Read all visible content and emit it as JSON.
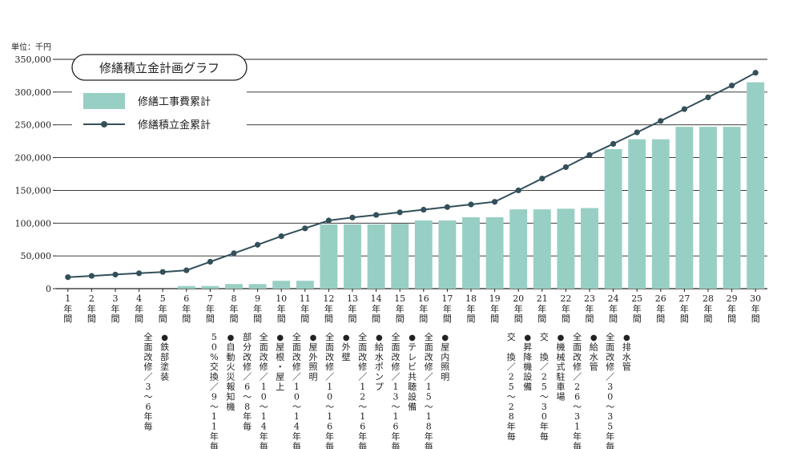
{
  "chart_data": {
    "type": "bar+line",
    "title": "修繕積立金計画グラフ",
    "unit_label": "単位：千円",
    "ylim": [
      0,
      350000
    ],
    "yticks": [
      "0",
      "50,000",
      "100,000",
      "150,000",
      "200,000",
      "250,000",
      "300,000",
      "350,000"
    ],
    "grid": true,
    "legend_position": "top-left",
    "colors": {
      "bar": "#98cfc4",
      "line": "#33505a",
      "grid": "#222222"
    },
    "categories": [
      "1年間",
      "2年間",
      "3年間",
      "4年間",
      "5年間",
      "6年間",
      "7年間",
      "8年間",
      "9年間",
      "10年間",
      "11年間",
      "12年間",
      "13年間",
      "14年間",
      "15年間",
      "16年間",
      "17年間",
      "18年間",
      "19年間",
      "20年間",
      "21年間",
      "22年間",
      "23年間",
      "24年間",
      "25年間",
      "26年間",
      "27年間",
      "28年間",
      "29年間",
      "30年間"
    ],
    "x_labels": [
      {
        "num": "1",
        "chars": [
          "年",
          "間"
        ]
      },
      {
        "num": "2",
        "chars": [
          "年",
          "間"
        ]
      },
      {
        "num": "3",
        "chars": [
          "年",
          "間"
        ]
      },
      {
        "num": "4",
        "chars": [
          "年",
          "間"
        ]
      },
      {
        "num": "5",
        "chars": [
          "年",
          "間"
        ]
      },
      {
        "num": "6",
        "chars": [
          "年",
          "間"
        ]
      },
      {
        "num": "7",
        "chars": [
          "年",
          "間"
        ]
      },
      {
        "num": "8",
        "chars": [
          "年",
          "間"
        ]
      },
      {
        "num": "9",
        "chars": [
          "年",
          "間"
        ]
      },
      {
        "num": "10",
        "chars": [
          "年",
          "間"
        ]
      },
      {
        "num": "11",
        "chars": [
          "年",
          "間"
        ]
      },
      {
        "num": "12",
        "chars": [
          "年",
          "間"
        ]
      },
      {
        "num": "13",
        "chars": [
          "年",
          "間"
        ]
      },
      {
        "num": "14",
        "chars": [
          "年",
          "間"
        ]
      },
      {
        "num": "15",
        "chars": [
          "年",
          "間"
        ]
      },
      {
        "num": "16",
        "chars": [
          "年",
          "間"
        ]
      },
      {
        "num": "17",
        "chars": [
          "年",
          "間"
        ]
      },
      {
        "num": "18",
        "chars": [
          "年",
          "間"
        ]
      },
      {
        "num": "19",
        "chars": [
          "年",
          "間"
        ]
      },
      {
        "num": "20",
        "chars": [
          "年",
          "間"
        ]
      },
      {
        "num": "21",
        "chars": [
          "年",
          "間"
        ]
      },
      {
        "num": "22",
        "chars": [
          "年",
          "間"
        ]
      },
      {
        "num": "23",
        "chars": [
          "年",
          "間"
        ]
      },
      {
        "num": "24",
        "chars": [
          "年",
          "間"
        ]
      },
      {
        "num": "25",
        "chars": [
          "年",
          "間"
        ]
      },
      {
        "num": "26",
        "chars": [
          "年",
          "間"
        ]
      },
      {
        "num": "27",
        "chars": [
          "年",
          "間"
        ]
      },
      {
        "num": "28",
        "chars": [
          "年",
          "間"
        ]
      },
      {
        "num": "29",
        "chars": [
          "年",
          "間"
        ]
      },
      {
        "num": "30",
        "chars": [
          "年",
          "間"
        ]
      }
    ],
    "series": [
      {
        "name": "修繕工事費累計",
        "type": "bar",
        "values": [
          0,
          0,
          0,
          0,
          0,
          4000,
          4000,
          7000,
          7000,
          12000,
          12000,
          98000,
          98000,
          98000,
          99000,
          104000,
          104000,
          109000,
          109000,
          121000,
          121000,
          122000,
          123000,
          213000,
          228000,
          228000,
          247000,
          247000,
          247000,
          315000
        ]
      },
      {
        "name": "修繕積立金累計",
        "type": "line",
        "values": [
          17500,
          19500,
          21500,
          23500,
          25500,
          28000,
          41000,
          54000,
          67000,
          80000,
          92000,
          104000,
          108500,
          112500,
          116500,
          120500,
          124500,
          128500,
          132500,
          150000,
          168000,
          185500,
          204000,
          221000,
          238500,
          256000,
          274000,
          292000,
          310000,
          329500
        ]
      }
    ],
    "annotations": [
      {
        "col": 4,
        "text": "全面改修／3〜6年毎"
      },
      {
        "col": 5,
        "text": "●鉄部塗装"
      },
      {
        "col": 8,
        "text": "50%交換／9〜11年毎"
      },
      {
        "col": 9,
        "text": "●自動火災報知機"
      },
      {
        "col": 10,
        "text": "部分改修／6〜8年毎"
      },
      {
        "col": 11,
        "text": "全面改修／10〜14年毎"
      },
      {
        "col": 12,
        "text": "●屋根・屋上"
      },
      {
        "col": 13,
        "text": "全面改修／10〜14年毎"
      },
      {
        "col": 14,
        "text": "●屋外照明"
      },
      {
        "col": 15,
        "text": "全面改修／10〜16年毎"
      },
      {
        "col": 16,
        "text": "●外壁"
      },
      {
        "col": 17,
        "text": "全面改修／12〜16年毎"
      },
      {
        "col": 18,
        "text": "●給水ポンプ"
      },
      {
        "col": 19,
        "text": "全面改修／13〜16年毎"
      },
      {
        "col": 20,
        "text": "●テレビ共聴設備"
      },
      {
        "col": 21,
        "text": "全面改修／15〜18年毎"
      },
      {
        "col": 22,
        "text": "●屋内照明"
      },
      {
        "col": 26,
        "text": "交　換／25〜28年毎"
      },
      {
        "col": 27,
        "text": "●昇降機設備"
      },
      {
        "col": 28,
        "text": "交　換／25〜30年毎"
      },
      {
        "col": 29,
        "text": "●機械式駐車場"
      },
      {
        "col": 30,
        "text": "全面改修／26〜31年毎"
      },
      {
        "col": 31,
        "text": "●給水管"
      },
      {
        "col": 32,
        "text": "全面改修／30〜35年毎"
      },
      {
        "col": 33,
        "text": "●排水管"
      }
    ]
  }
}
